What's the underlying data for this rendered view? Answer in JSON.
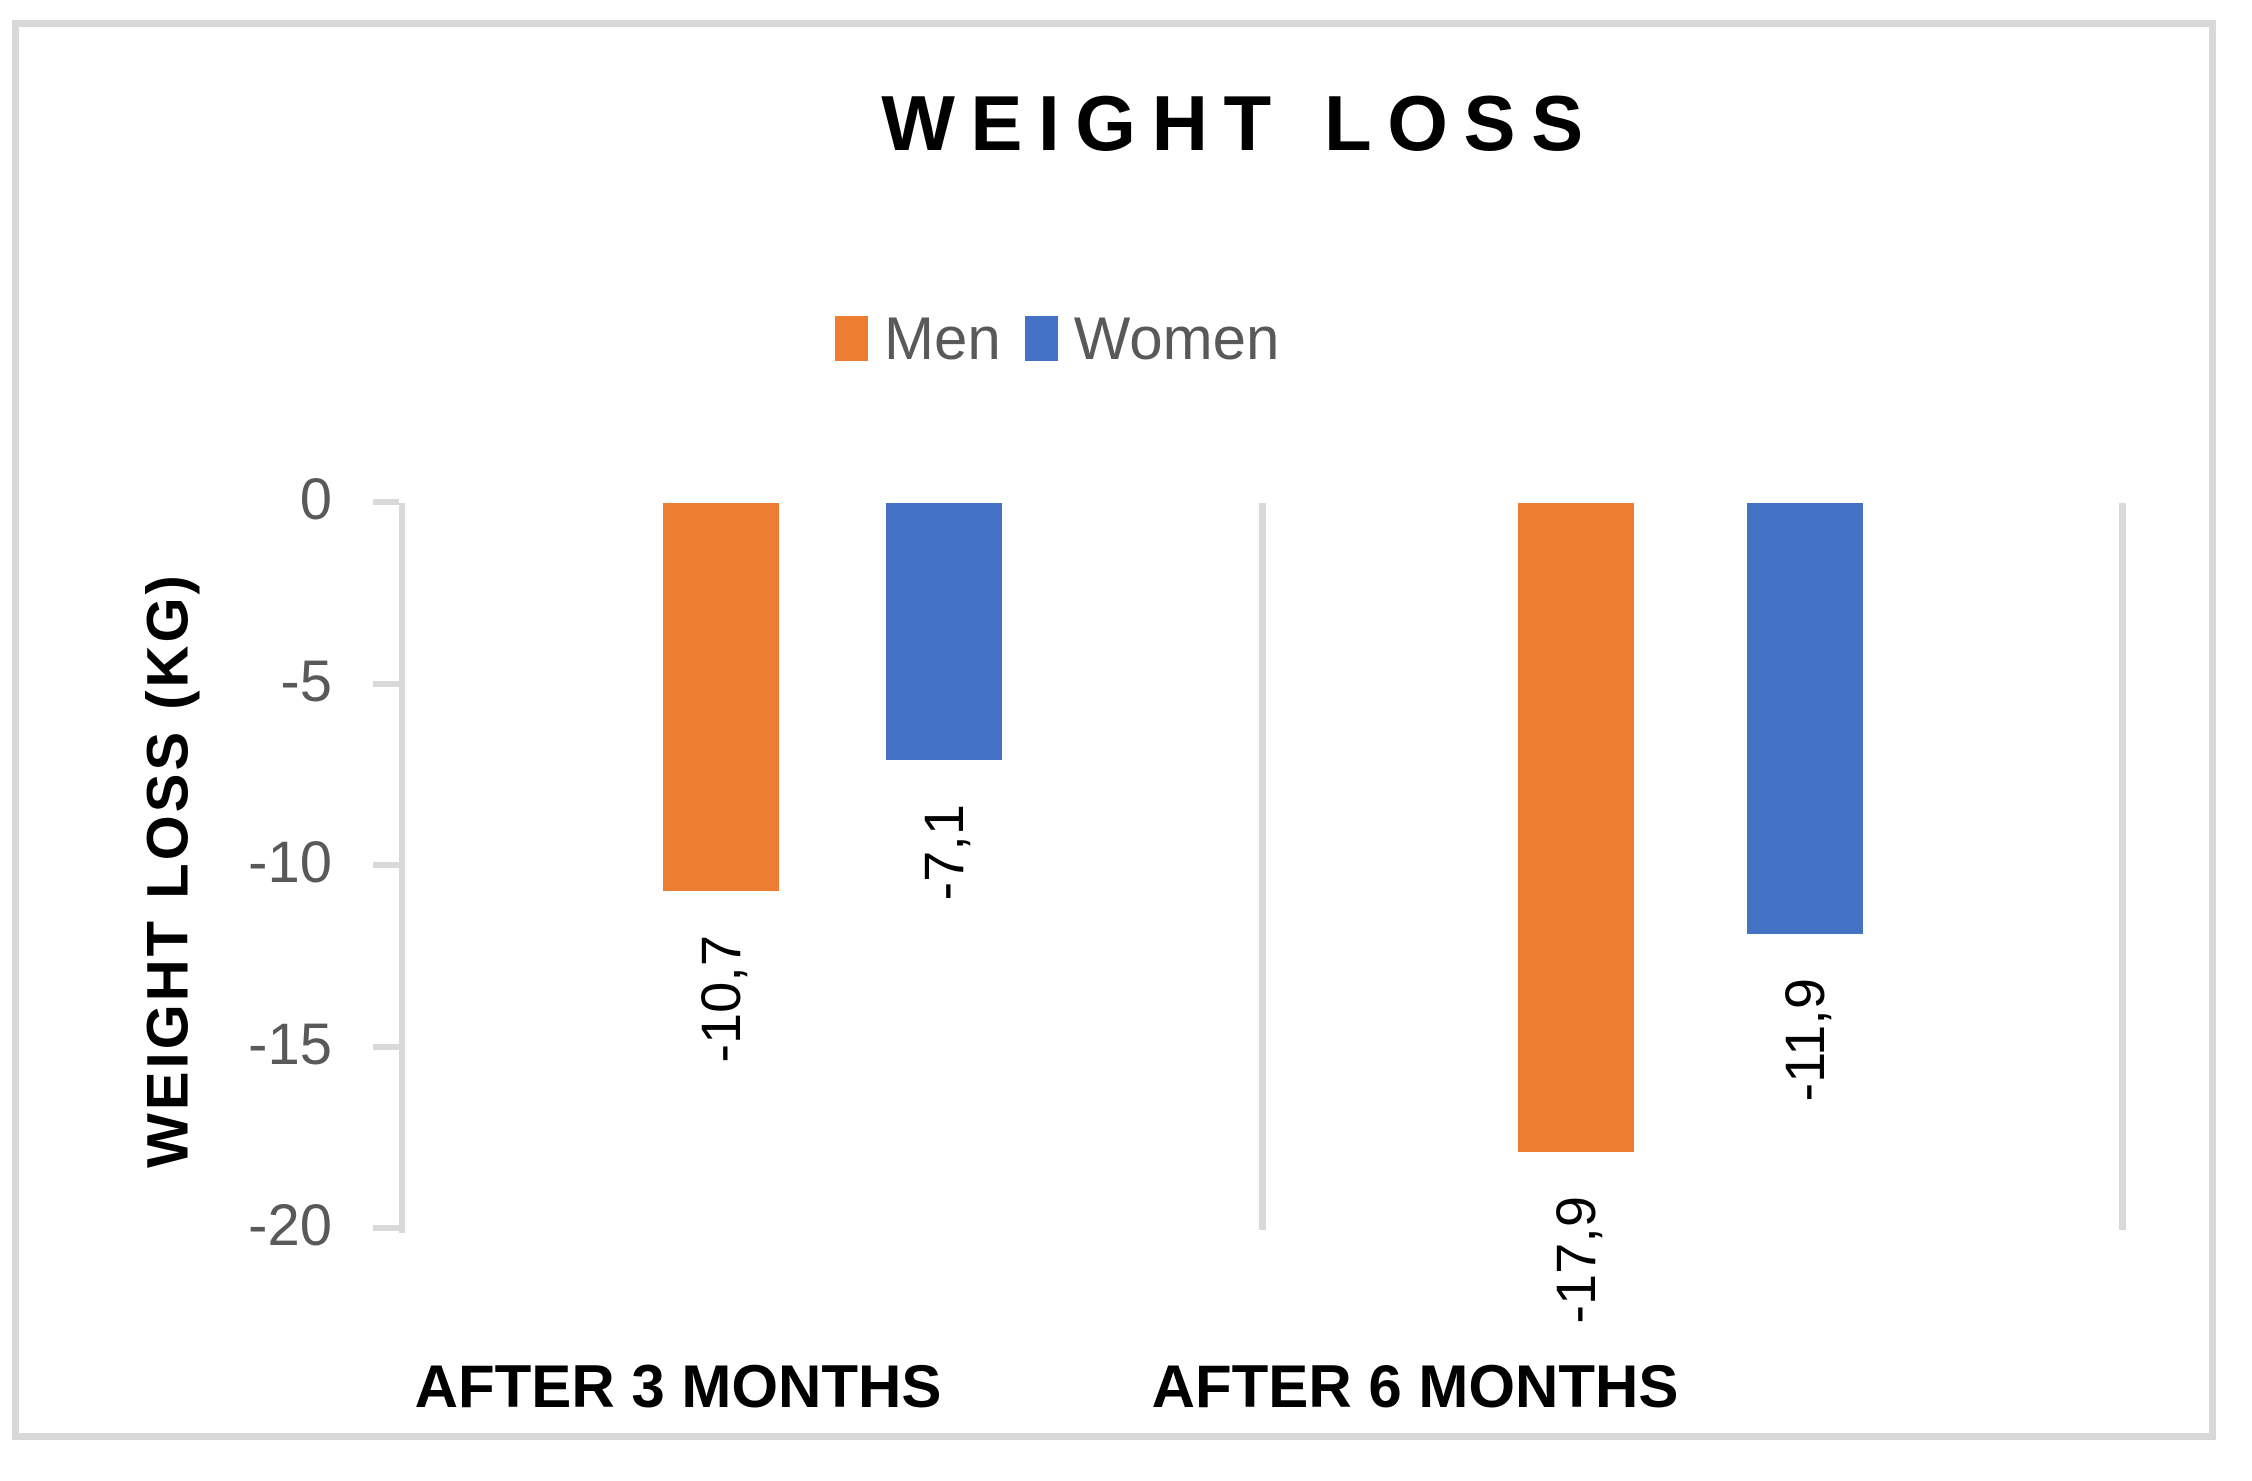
{
  "chart_data": {
    "type": "bar",
    "title": "WEIGHT LOSS",
    "ylabel": "WEIGHT LOSS (KG)",
    "categories": [
      "AFTER 3 MONTHS",
      "AFTER 6 MONTHS"
    ],
    "series": [
      {
        "name": "Men",
        "color": "#ED7D31",
        "values": [
          -10.7,
          -17.9
        ],
        "data_labels": [
          "-10,7",
          "-17,9"
        ]
      },
      {
        "name": "Women",
        "color": "#4472C4",
        "values": [
          -7.1,
          -11.9
        ],
        "data_labels": [
          "-7,1",
          "-11,9"
        ]
      }
    ],
    "y_ticks": [
      0,
      -5,
      -10,
      -15,
      -20
    ],
    "y_tick_labels": [
      "0",
      "-5",
      "-10",
      "-15",
      "-20"
    ],
    "ylim": [
      0,
      -20
    ],
    "legend_position": "top-center",
    "grid": "vertical category separators, light gray",
    "bar_orientation": "vertical-negative (bars hang down from zero line)",
    "data_label_rotation": "rotated 90deg, reading bottom to top"
  },
  "colors": {
    "men_series": "#ED7D31",
    "women_series": "#4472C4",
    "axis_text": "#595959",
    "grid_lines": "#D9D9D9",
    "frame_border": "#D8D8D8",
    "title_text": "#000000",
    "background": "#FFFFFF"
  }
}
